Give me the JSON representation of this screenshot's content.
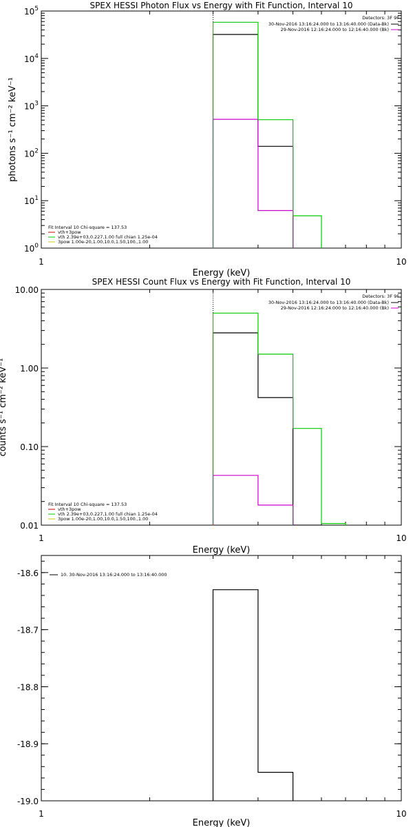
{
  "chart_data": [
    {
      "type": "step",
      "title": "SPEX HESSI Photon Flux vs Energy with Fit Function, Interval 10",
      "xlabel": "Energy (keV)",
      "ylabel": "photons s⁻¹ cm⁻² keV⁻¹",
      "xscale": "log",
      "yscale": "log",
      "xlim": [
        1,
        10
      ],
      "ylim": [
        1,
        100000
      ],
      "xticks": [
        {
          "v": 1,
          "label": "1"
        },
        {
          "v": 10,
          "label": "10"
        }
      ],
      "yticks": [
        {
          "v": 1,
          "base": "10",
          "exp": "0"
        },
        {
          "v": 10,
          "base": "10",
          "exp": "1"
        },
        {
          "v": 100,
          "base": "10",
          "exp": "2"
        },
        {
          "v": 1000,
          "base": "10",
          "exp": "3"
        },
        {
          "v": 10000,
          "base": "10",
          "exp": "4"
        },
        {
          "v": 100000,
          "base": "10",
          "exp": "5"
        }
      ],
      "detectors": "Detectors: 3F 9F",
      "time_entries": [
        {
          "text": "30-Nov-2016 13:16:24.000 to 13:16:40.000 (Data-Bk)",
          "color": "#000000"
        },
        {
          "text": "29-Nov-2016 12:16:24.000 to 12:16:40.000 (Bk)",
          "color": "#cc00cc"
        }
      ],
      "fit_header": "Fit Interval 10   Chi-square = 137.53",
      "fit_entries": [
        {
          "text": "vth+3pow",
          "color": "#cc0000"
        },
        {
          "text": "vth 2.39e+03,0.227,1.00  full chian 1.25e-04",
          "color": "#00cc00"
        },
        {
          "text": "3pow 1.00e-20,1.00,10.0,1.50,100.,1.00",
          "color": "#cccc00"
        }
      ],
      "vline_x": 3.0,
      "series": [
        {
          "name": "Data-Bk",
          "color": "#000000",
          "bins": [
            [
              3,
              4,
              32000
            ],
            [
              4,
              5,
              140
            ]
          ]
        },
        {
          "name": "Bk",
          "color": "#cc00cc",
          "bins": [
            [
              3,
              4,
              520
            ],
            [
              4,
              5,
              6.2
            ]
          ]
        },
        {
          "name": "vth",
          "color": "#00cc00",
          "bins": [
            [
              3,
              4,
              58000
            ],
            [
              4,
              5,
              510
            ],
            [
              5,
              6,
              4.8
            ]
          ]
        }
      ]
    },
    {
      "type": "step",
      "title": "SPEX HESSI Count Flux vs Energy with Fit Function, Interval 10",
      "xlabel": "Energy (keV)",
      "ylabel": "counts s⁻¹ cm⁻² keV⁻¹",
      "xscale": "log",
      "yscale": "log",
      "xlim": [
        1,
        10
      ],
      "ylim": [
        0.01,
        10
      ],
      "xticks": [
        {
          "v": 1,
          "label": "1"
        },
        {
          "v": 10,
          "label": "10"
        }
      ],
      "yticks": [
        {
          "v": 0.01,
          "label": "0.01"
        },
        {
          "v": 0.1,
          "label": "0.10"
        },
        {
          "v": 1,
          "label": "1.00"
        },
        {
          "v": 10,
          "label": "10.00"
        }
      ],
      "detectors": "Detectors: 3F 9F",
      "time_entries": [
        {
          "text": "30-Nov-2016 13:16:24.000 to 13:16:40.000 (Data-Bk)",
          "color": "#000000"
        },
        {
          "text": "29-Nov-2016 12:16:24.000 to 12:16:40.000 (Bk)",
          "color": "#cc00cc"
        }
      ],
      "fit_header": "Fit Interval 10   Chi-square = 137.53",
      "fit_entries": [
        {
          "text": "vth+3pow",
          "color": "#cc0000"
        },
        {
          "text": "vth 2.39e+03,0.227,1.00  full chian 1.25e-04",
          "color": "#00cc00"
        },
        {
          "text": "3pow 1.00e-20,1.00,10.0,1.50,100.,1.00",
          "color": "#cccc00"
        }
      ],
      "vline_x": 3.0,
      "series": [
        {
          "name": "Data-Bk",
          "color": "#000000",
          "bins": [
            [
              3,
              4,
              2.8
            ],
            [
              4,
              5,
              0.42
            ],
            [
              5,
              6,
              0.01
            ]
          ]
        },
        {
          "name": "Bk",
          "color": "#cc00cc",
          "bins": [
            [
              3,
              4,
              0.043
            ],
            [
              4,
              5,
              0.018
            ]
          ]
        },
        {
          "name": "vth",
          "color": "#00cc00",
          "bins": [
            [
              3,
              4,
              5.0
            ],
            [
              4,
              5,
              1.5
            ],
            [
              5,
              6,
              0.17
            ],
            [
              6,
              7,
              0.0105
            ]
          ]
        }
      ]
    },
    {
      "type": "step",
      "title": "",
      "xlabel": "Energy (keV)",
      "ylabel": "",
      "xscale": "log",
      "yscale": "linear",
      "xlim": [
        1,
        10
      ],
      "ylim": [
        -19.0,
        -18.57
      ],
      "xticks": [
        {
          "v": 1,
          "label": "1"
        },
        {
          "v": 10,
          "label": "10"
        }
      ],
      "yticks": [
        {
          "v": -19.0,
          "label": "-19.0"
        },
        {
          "v": -18.9,
          "label": "-18.9"
        },
        {
          "v": -18.8,
          "label": "-18.8"
        },
        {
          "v": -18.7,
          "label": "-18.7"
        },
        {
          "v": -18.6,
          "label": "-18.6"
        }
      ],
      "legend": [
        {
          "text": "10. 30-Nov-2016 13:16:24.000 to 13:16:40.000",
          "color": "#000000"
        }
      ],
      "series": [
        {
          "name": "10. 30-Nov-2016 13:16:24.000 to 13:16:40.000",
          "color": "#000000",
          "bins": [
            [
              3,
              4,
              -18.63
            ],
            [
              4,
              5,
              -18.95
            ]
          ]
        }
      ]
    }
  ]
}
